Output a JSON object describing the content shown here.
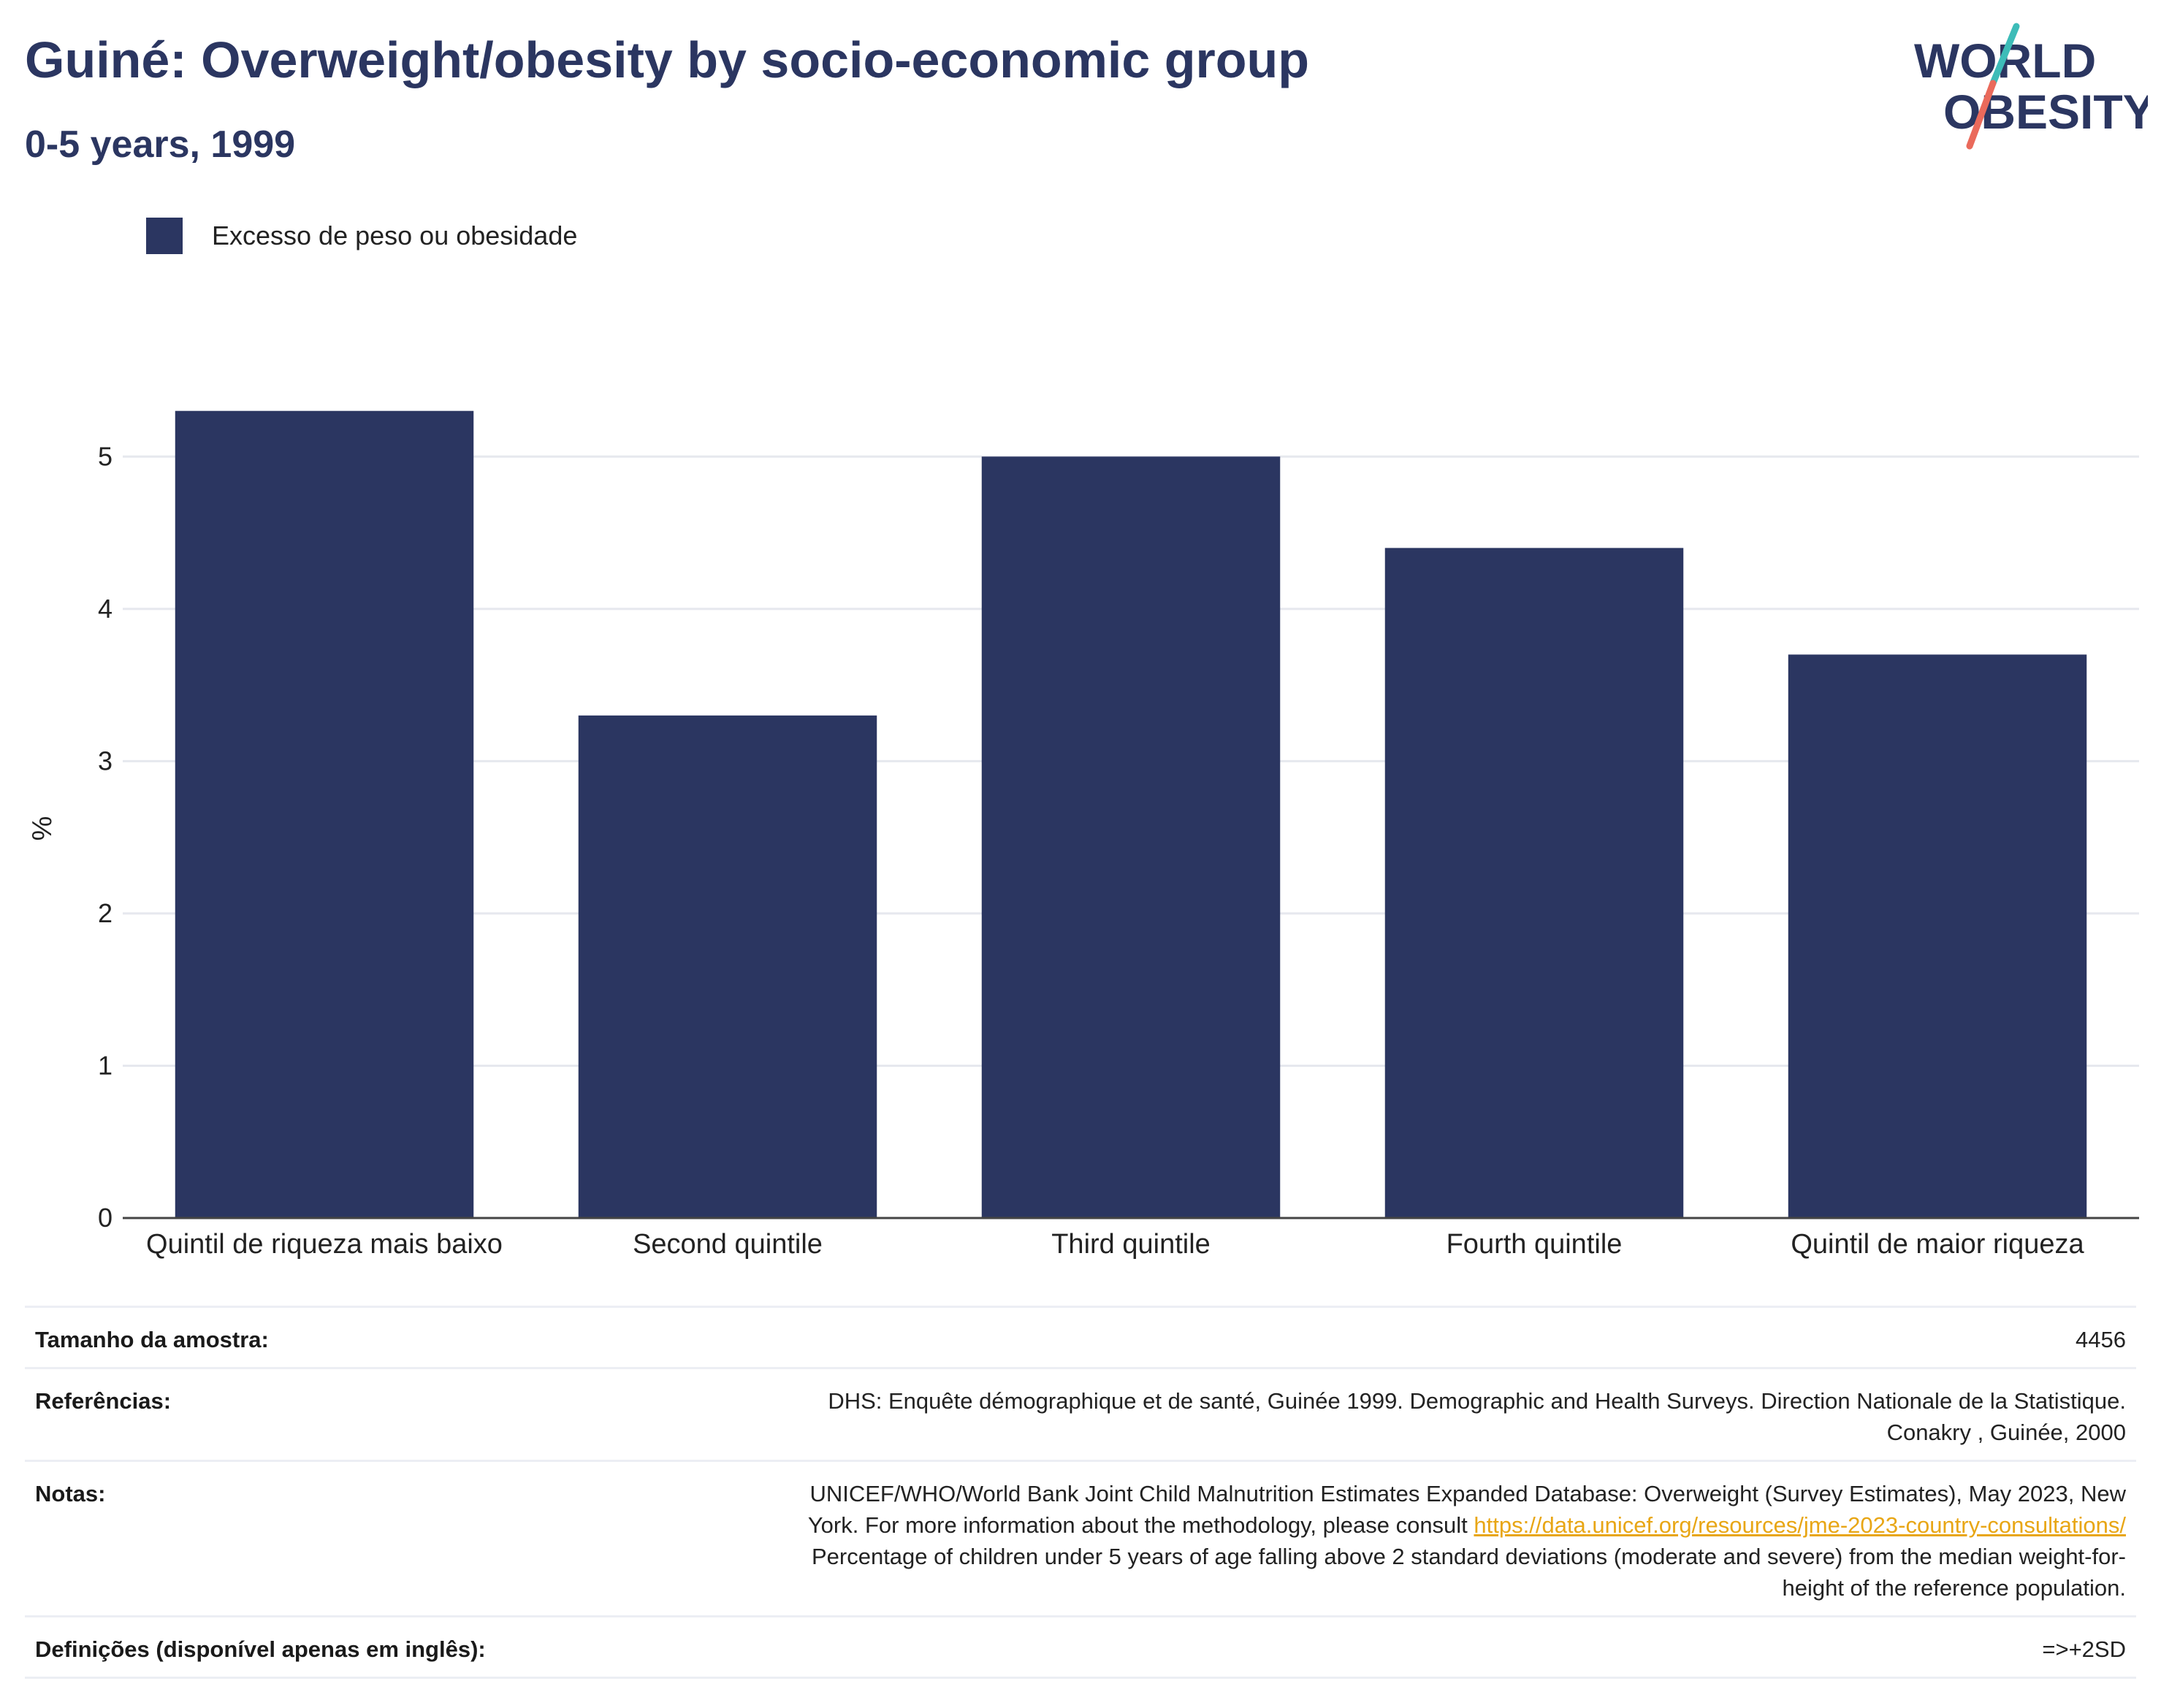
{
  "title": "Guiné: Overweight/obesity by socio-economic group",
  "subtitle": "0-5 years, 1999",
  "logo": {
    "line1": "WORLD",
    "line2": "OBESITY"
  },
  "colors": {
    "bar": "#2b3661",
    "title": "#2b3661",
    "grid": "#e6e8ee",
    "link": "#e8a615",
    "logo_teal": "#3dbcb8",
    "logo_coral": "#ea6a5b"
  },
  "chart_data": {
    "type": "bar",
    "categories": [
      "Quintil de riqueza mais baixo",
      "Second quintile",
      "Third quintile",
      "Fourth quintile",
      "Quintil de maior riqueza"
    ],
    "series": [
      {
        "name": "Excesso de peso ou obesidade",
        "values": [
          5.3,
          3.3,
          5.0,
          4.4,
          3.7
        ]
      }
    ],
    "ylabel": "%",
    "xlabel": "",
    "ylim": [
      0,
      5.5
    ],
    "yticks": [
      0,
      1,
      2,
      3,
      4,
      5
    ],
    "grid": true,
    "legend_position": "top-left"
  },
  "info": {
    "sample": {
      "label": "Tamanho da amostra:",
      "value": "4456"
    },
    "references": {
      "label": "Referências:",
      "line1": "DHS: Enquête démographique et de santé, Guinée 1999. Demographic and Health Surveys. Direction Nationale de la Statistique.",
      "line2": "Conakry , Guinée, 2000"
    },
    "notes": {
      "label": "Notas:",
      "line1": "UNICEF/WHO/World Bank Joint Child Malnutrition Estimates Expanded Database: Overweight (Survey Estimates), May 2023, New",
      "line2_prefix": "York. For more information about the methodology, please consult ",
      "link": "https://data.unicef.org/resources/jme-2023-country-consultations/",
      "line3": "Percentage of children under 5 years of age falling above 2 standard deviations (moderate and severe) from the median weight-for-",
      "line4": "height of the reference population."
    },
    "definitions": {
      "label": "Definições (disponível apenas em inglês):",
      "value": "=>+2SD"
    }
  }
}
